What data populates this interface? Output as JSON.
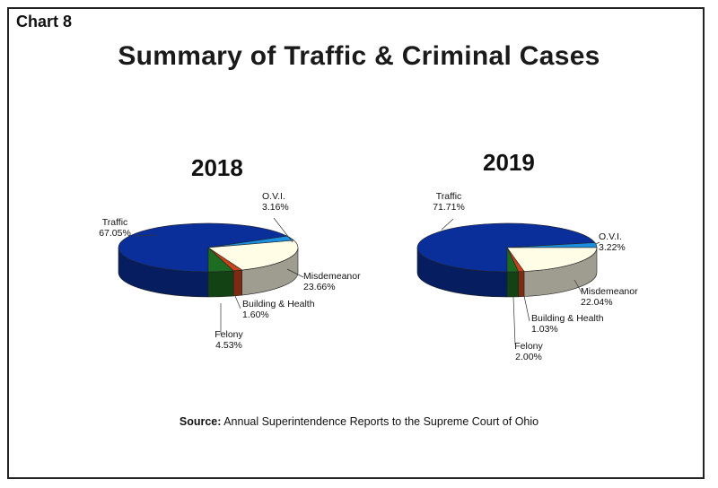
{
  "header": {
    "chart_label": "Chart 8",
    "title": "Summary of Traffic & Criminal Cases"
  },
  "source": {
    "prefix": "Source:",
    "text": "Annual Superintendence Reports to the Supreme Court of Ohio"
  },
  "colors": {
    "Traffic": "#0a2f9a",
    "O.V.I.": "#1a8fe0",
    "Misdemeanor": "#fffde6",
    "Building & Health": "#c8431c",
    "Felony": "#1e6b22"
  },
  "chart_data": [
    {
      "type": "pie",
      "title": "2018",
      "slices": [
        {
          "name": "Traffic",
          "value": 67.05,
          "label": "Traffic",
          "pct": "67.05%"
        },
        {
          "name": "O.V.I.",
          "value": 3.16,
          "label": "O.V.I.",
          "pct": "3.16%"
        },
        {
          "name": "Misdemeanor",
          "value": 23.66,
          "label": "Misdemeanor",
          "pct": "23.66%"
        },
        {
          "name": "Building & Health",
          "value": 1.6,
          "label": "Building & Health",
          "pct": "1.60%"
        },
        {
          "name": "Felony",
          "value": 4.53,
          "label": "Felony",
          "pct": "4.53%"
        }
      ]
    },
    {
      "type": "pie",
      "title": "2019",
      "slices": [
        {
          "name": "Traffic",
          "value": 71.71,
          "label": "Traffic",
          "pct": "71.71%"
        },
        {
          "name": "O.V.I.",
          "value": 3.22,
          "label": "O.V.I.",
          "pct": "3.22%"
        },
        {
          "name": "Misdemeanor",
          "value": 22.04,
          "label": "Misdemeanor",
          "pct": "22.04%"
        },
        {
          "name": "Building & Health",
          "value": 1.03,
          "label": "Building & Health",
          "pct": "1.03%"
        },
        {
          "name": "Felony",
          "value": 2.0,
          "label": "Felony",
          "pct": "2.00%"
        }
      ]
    }
  ]
}
